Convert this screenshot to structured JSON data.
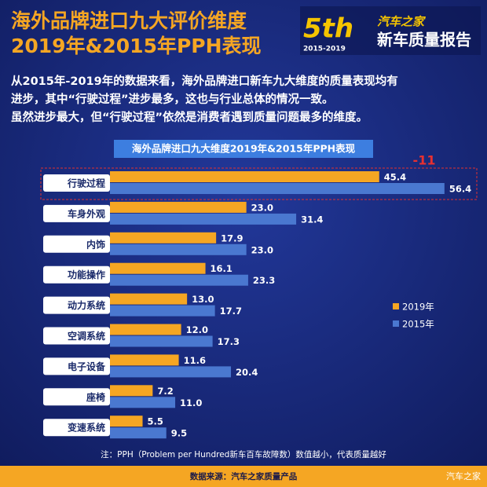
{
  "header": {
    "title_lines": [
      "海外品牌进口九大评价维度",
      "2019年&2015年PPH表现"
    ],
    "logo": {
      "edition": "5th",
      "years": "2015-2019",
      "brand": "汽车之家",
      "report": "新车质量报告"
    }
  },
  "intro": {
    "lines": [
      "从2015年-2019年的数据来看，海外品牌进口新车九大维度的质量表现均有",
      "进步，其中“行驶过程”进步最多，这也与行业总体的情况一致。",
      "虽然进步最大，但“行驶过程”依然是消费者遇到质量问题最多的维度。"
    ]
  },
  "chart_data": {
    "type": "bar",
    "orientation": "horizontal",
    "title": "海外品牌进口九大维度2019年&2015年PPH表现",
    "categories": [
      "行驶过程",
      "车身外观",
      "内饰",
      "功能操作",
      "动力系统",
      "空调系统",
      "电子设备",
      "座椅",
      "变速系统"
    ],
    "series": [
      {
        "name": "2019年",
        "color": "#f5a623",
        "values": [
          45.4,
          23.0,
          17.9,
          16.1,
          13.0,
          12.0,
          11.6,
          7.2,
          5.5
        ],
        "value_labels": [
          "45.4",
          "23.0",
          "17.9",
          "16.1",
          "13.0",
          "12.0",
          "11.6",
          "7.2",
          "5.5"
        ]
      },
      {
        "name": "2015年",
        "color": "#4a78d0",
        "values": [
          56.4,
          31.4,
          23.0,
          23.3,
          17.7,
          17.3,
          20.4,
          11.0,
          9.5
        ],
        "value_labels": [
          "56.4",
          "31.4",
          "23.0",
          "23.3",
          "17.7",
          "17.3",
          "20.4",
          "11.0",
          "9.5"
        ]
      }
    ],
    "annotation": "-11",
    "legend": "right"
  },
  "note": "注：PPH（Problem per Hundred新车百车故障数）数值越小，代表质量越好",
  "footer": {
    "source": "数据来源：汽车之家质量产品",
    "watermark": "汽车之家"
  }
}
